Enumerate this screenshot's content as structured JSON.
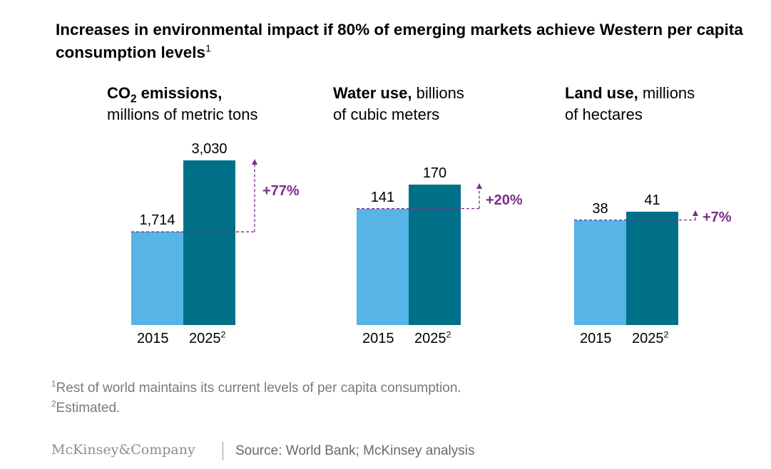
{
  "title": "Increases in environmental impact if 80% of emerging markets achieve Western per capita consumption levels",
  "title_footnote": "1",
  "colors": {
    "bar_2015": "#56b4e6",
    "bar_2025": "#007089",
    "accent": "#7b2c8c"
  },
  "chart_data": [
    {
      "type": "bar",
      "panel_title_bold_1": "CO",
      "panel_title_sub": "2",
      "panel_title_bold_2": " emissions,",
      "panel_title_rest": "millions of metric tons",
      "categories": [
        "2015",
        "2025"
      ],
      "category_footnotes": [
        "",
        "2"
      ],
      "values": [
        1714,
        3030
      ],
      "value_labels": [
        "1,714",
        "3,030"
      ],
      "change_label": "+77%"
    },
    {
      "type": "bar",
      "panel_title_bold": "Water use,",
      "panel_title_rest_1": "billions",
      "panel_title_rest_2": "of cubic meters",
      "categories": [
        "2015",
        "2025"
      ],
      "category_footnotes": [
        "",
        "2"
      ],
      "values": [
        141,
        170
      ],
      "value_labels": [
        "141",
        "170"
      ],
      "change_label": "+20%"
    },
    {
      "type": "bar",
      "panel_title_bold": "Land use,",
      "panel_title_rest_1": "millions",
      "panel_title_rest_2": "of hectares",
      "categories": [
        "2015",
        "2025"
      ],
      "category_footnotes": [
        "",
        "2"
      ],
      "values": [
        38,
        41
      ],
      "value_labels": [
        "38",
        "41"
      ],
      "change_label": "+7%"
    }
  ],
  "footnotes": [
    {
      "marker": "1",
      "text": "Rest of world maintains its current levels of per capita consumption."
    },
    {
      "marker": "2",
      "text": "Estimated."
    }
  ],
  "logo": "McKinsey&Company",
  "source": "Source: World Bank; McKinsey analysis"
}
